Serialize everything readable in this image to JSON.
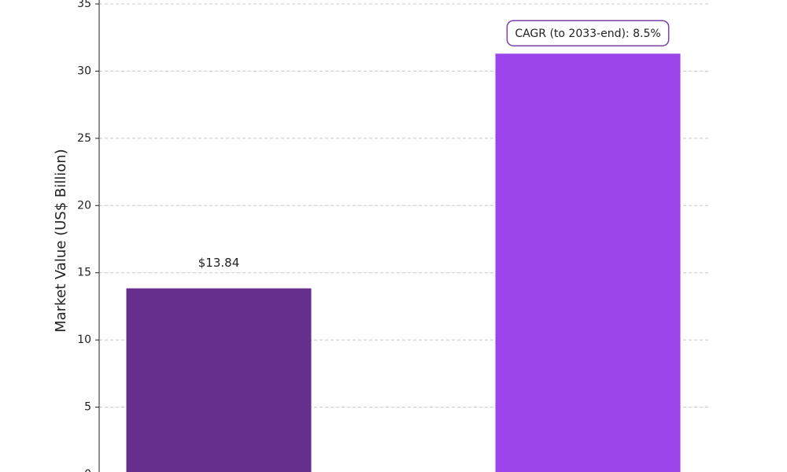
{
  "chart_data": {
    "type": "bar",
    "y_label": "Market Value (US$ Billion)",
    "categories": [
      null,
      null
    ],
    "values": [
      13.84,
      31.3
    ],
    "value_labels": [
      "$13.84",
      null
    ],
    "colors": [
      "#67308c",
      "#9b45eb"
    ],
    "annotation": "CAGR (to 2033-end): 8.5%",
    "ylim": [
      0,
      35
    ],
    "yticks": [
      0,
      5,
      10,
      15,
      20,
      25,
      30,
      35
    ],
    "grid": true
  }
}
